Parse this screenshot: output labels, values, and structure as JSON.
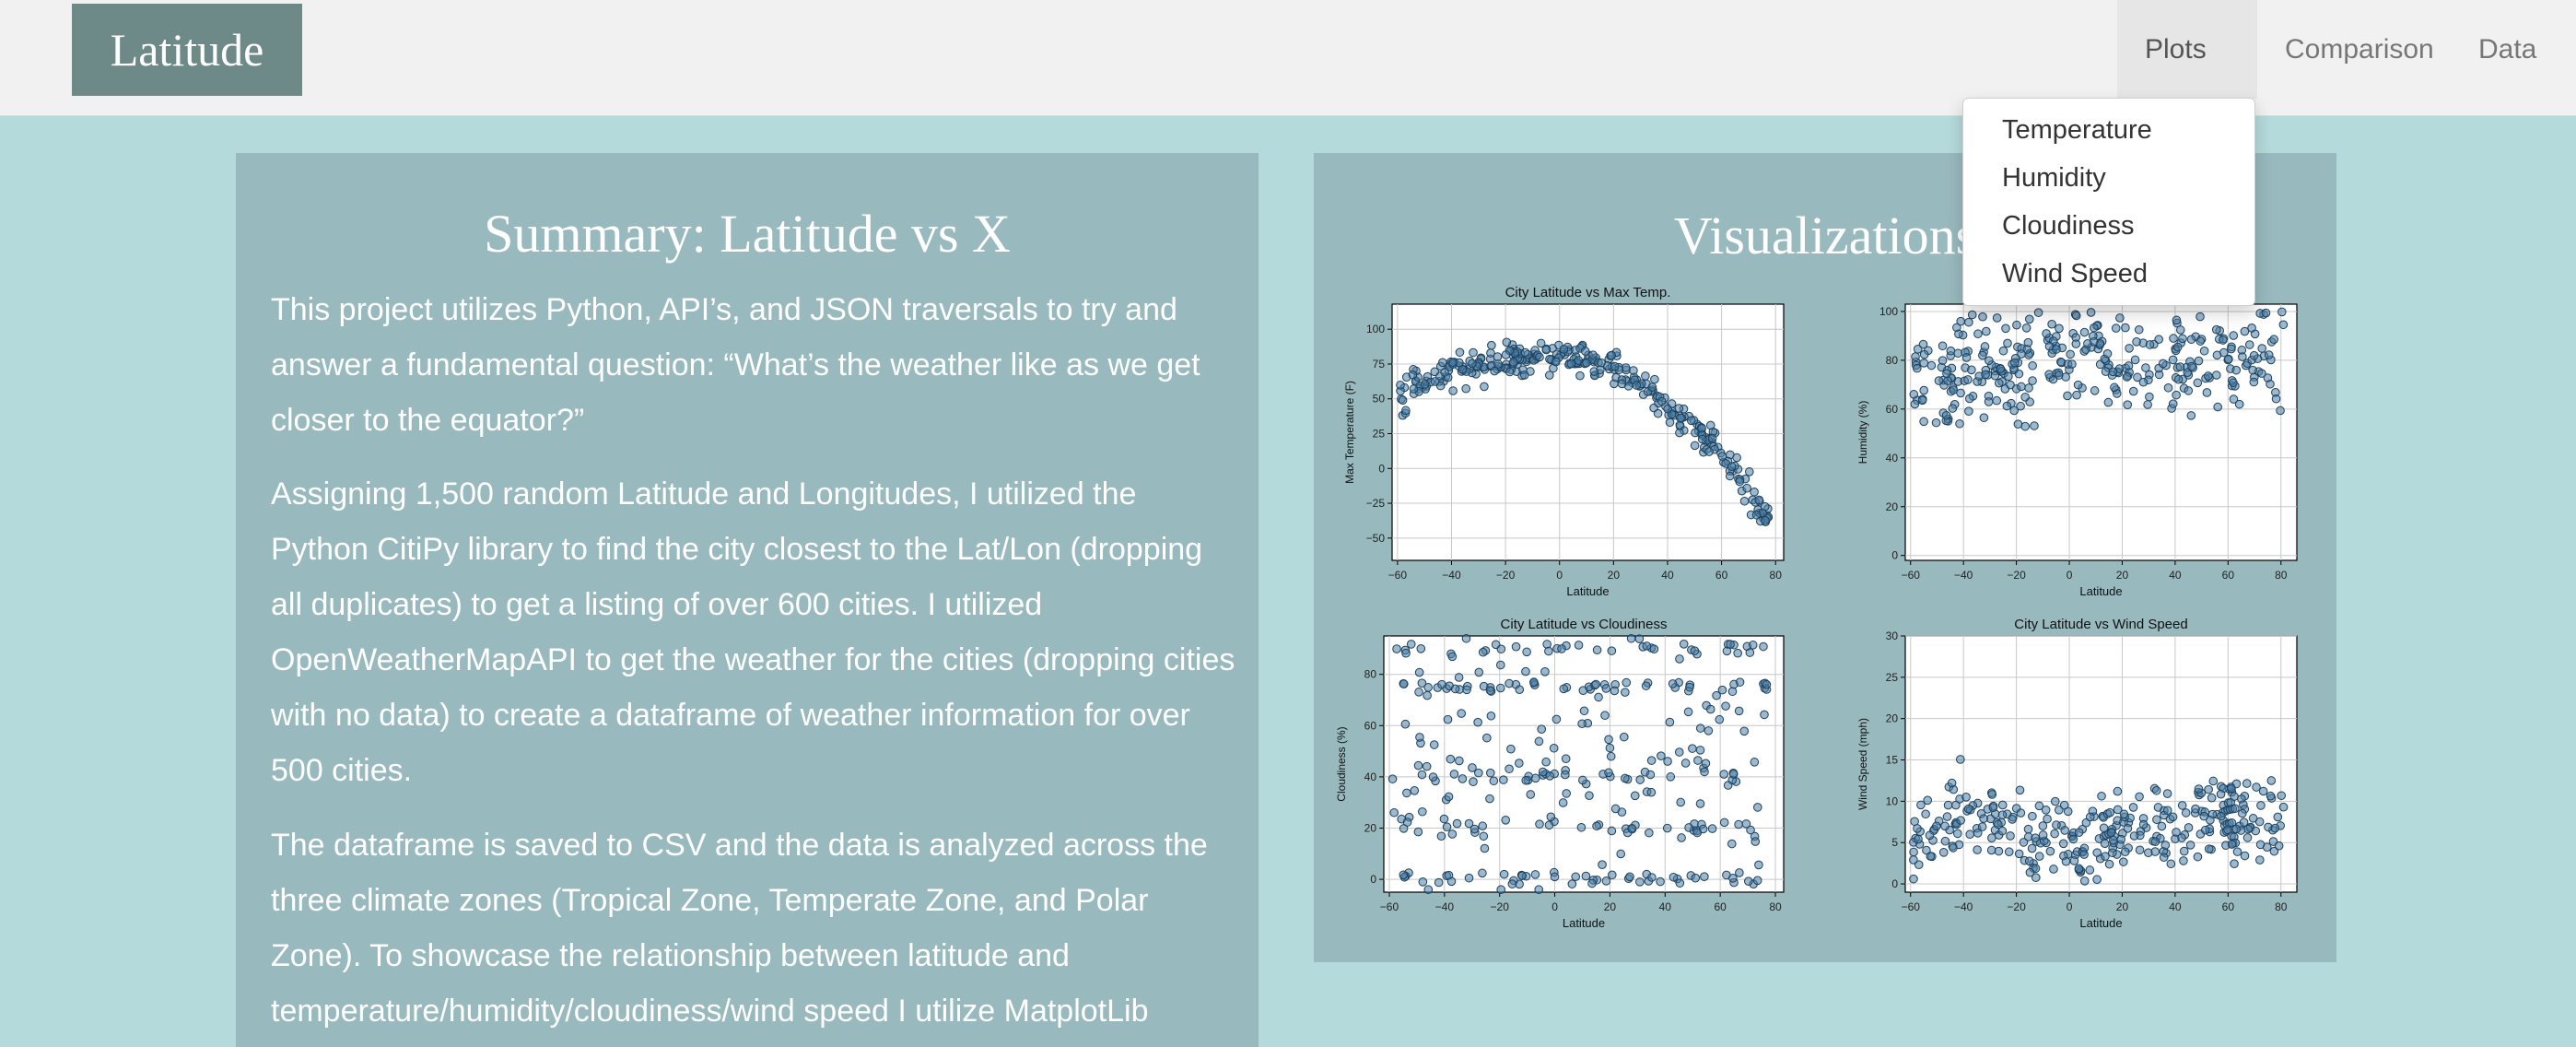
{
  "navbar": {
    "brand": "Latitude",
    "items": [
      {
        "label": "Plots"
      },
      {
        "label": "Comparison"
      },
      {
        "label": "Data"
      }
    ],
    "dropdown": [
      "Temperature",
      "Humidity",
      "Cloudiness",
      "Wind Speed"
    ]
  },
  "summary": {
    "title": "Summary: Latitude vs X",
    "paragraphs": [
      "This project utilizes Python, API’s, and JSON traversals to try and answer a fundamental question: “What’s the weather like as we get closer to the equator?”",
      "Assigning 1,500 random Latitude and Longitudes, I utilized the Python CitiPy library to find the city closest to the Lat/Lon (dropping all duplicates) to get a listing of over 600 cities. I utilized OpenWeatherMapAPI to get the weather for the cities (dropping cities with no data) to create a dataframe of weather information for over 500 cities.",
      "The dataframe is saved to CSV and the data is analyzed across the three climate zones (Tropical Zone, Temperate Zone, and Polar Zone). To showcase the relationship between latitude and temperature/humidity/cloudiness/wind speed I utilize MatplotLib"
    ]
  },
  "visualizations": {
    "title": "Visualizations"
  },
  "colors": {
    "page_bg": "#b5dadb",
    "panel_bg": "#98b9be",
    "brand_bg": "#6d8988",
    "marker": "#4a7fa7"
  },
  "chart_data": [
    {
      "type": "scatter",
      "title": "City Latitude vs Max Temp.",
      "xlabel": "Latitude",
      "ylabel": "Max Temperature (F)",
      "xlim": [
        -62,
        83
      ],
      "ylim": [
        -66,
        118
      ],
      "xticks": [
        -60,
        -40,
        -20,
        0,
        20,
        40,
        60,
        80
      ],
      "yticks": [
        -50,
        -25,
        0,
        25,
        50,
        75,
        100
      ],
      "grid": true,
      "trend": [
        [
          -60,
          50
        ],
        [
          -45,
          66
        ],
        [
          -30,
          73
        ],
        [
          -15,
          78
        ],
        [
          0,
          80
        ],
        [
          10,
          79
        ],
        [
          20,
          74
        ],
        [
          30,
          62
        ],
        [
          40,
          45
        ],
        [
          50,
          30
        ],
        [
          60,
          10
        ],
        [
          70,
          -15
        ],
        [
          78,
          -40
        ]
      ],
      "spread": 12,
      "n": 320,
      "seed": 11
    },
    {
      "type": "scatter",
      "title": "",
      "xlabel": "Latitude",
      "ylabel": "Humidity (%)",
      "xlim": [
        -62,
        86
      ],
      "ylim": [
        -2,
        103
      ],
      "xticks": [
        -60,
        -40,
        -20,
        0,
        20,
        40,
        60,
        80
      ],
      "yticks": [
        0,
        20,
        40,
        60,
        80,
        100
      ],
      "grid": true,
      "trend": [
        [
          -60,
          70
        ],
        [
          -40,
          75
        ],
        [
          -20,
          78
        ],
        [
          0,
          82
        ],
        [
          20,
          80
        ],
        [
          40,
          78
        ],
        [
          60,
          80
        ],
        [
          80,
          82
        ]
      ],
      "spread": 22,
      "cap": 100,
      "n": 320,
      "seed": 23
    },
    {
      "type": "scatter",
      "title": "City Latitude vs Cloudiness",
      "xlabel": "Latitude",
      "ylabel": "Cloudiness (%)",
      "xlim": [
        -62,
        83
      ],
      "ylim": [
        -5,
        95
      ],
      "xticks": [
        -60,
        -40,
        -20,
        0,
        20,
        40,
        60,
        80
      ],
      "yticks": [
        0,
        20,
        40,
        60,
        80
      ],
      "grid": true,
      "trend": [
        [
          -60,
          45
        ],
        [
          80,
          45
        ]
      ],
      "spread": 45,
      "bands": [
        0,
        1,
        20,
        40,
        75,
        90
      ],
      "n": 320,
      "seed": 37
    },
    {
      "type": "scatter",
      "title": "City Latitude vs Wind Speed",
      "xlabel": "Latitude",
      "ylabel": "Wind Speed (mph)",
      "xlim": [
        -62,
        86
      ],
      "ylim": [
        -1,
        30
      ],
      "xticks": [
        -60,
        -40,
        -20,
        0,
        20,
        40,
        60,
        80
      ],
      "yticks": [
        0,
        5,
        10,
        15,
        20,
        25,
        30
      ],
      "grid": true,
      "trend": [
        [
          -60,
          6
        ],
        [
          -40,
          9
        ],
        [
          -20,
          6
        ],
        [
          0,
          5
        ],
        [
          20,
          6
        ],
        [
          40,
          7
        ],
        [
          60,
          8
        ],
        [
          80,
          7
        ]
      ],
      "spread": 5,
      "floor": 0,
      "n": 320,
      "seed": 53
    }
  ]
}
